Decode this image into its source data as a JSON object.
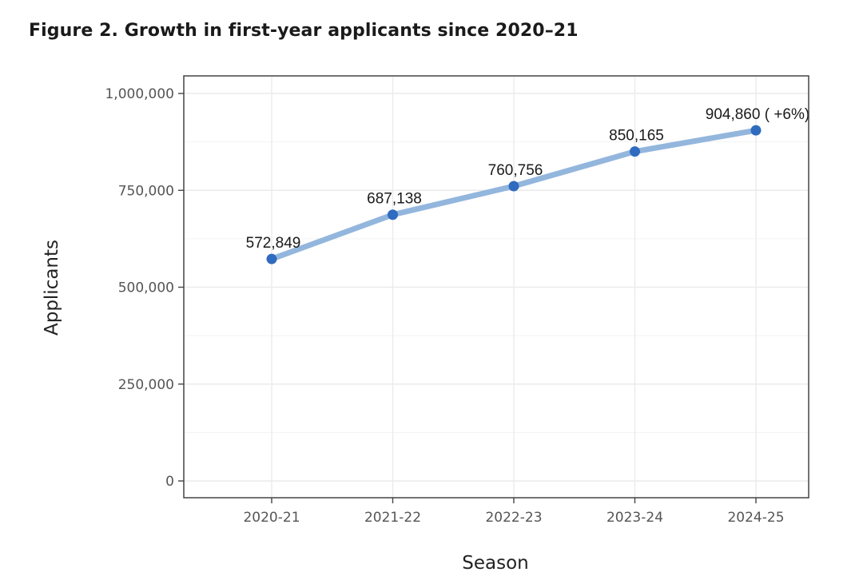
{
  "figure": {
    "title": "Figure 2. Growth in first-year applicants since 2020–21"
  },
  "chart_data": {
    "type": "line",
    "title": "",
    "xlabel": "Season",
    "ylabel": "Applicants",
    "categories": [
      "2020-21",
      "2021-22",
      "2022-23",
      "2023-24",
      "2024-25"
    ],
    "series": [
      {
        "values": [
          572849,
          687138,
          760756,
          850165,
          904860
        ],
        "labels": [
          "572,849",
          "687,138",
          "760,756",
          "850,165",
          "904,860 ( +6%)"
        ]
      }
    ],
    "ylim": [
      0,
      1000000
    ],
    "yticks": [
      0,
      250000,
      500000,
      750000,
      1000000
    ],
    "ytick_labels": [
      "0",
      "250,000",
      "500,000",
      "750,000",
      "1,000,000"
    ],
    "grid": true,
    "line_color": "#93b6dd",
    "marker_color": "#2f6bbf",
    "grid_color": "#ebebeb",
    "panel_border_color": "#444444"
  }
}
